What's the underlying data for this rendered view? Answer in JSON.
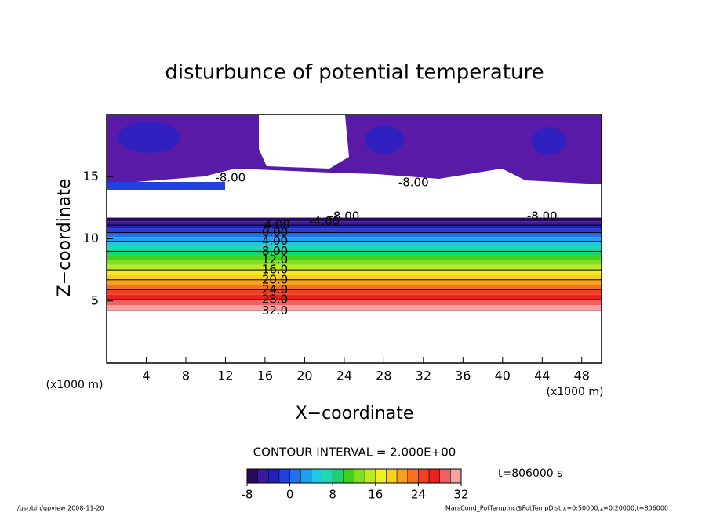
{
  "chart_data": {
    "type": "contour",
    "title": "disturbunce of potential temperature",
    "x_label": "X−coordinate",
    "y_label": "Z−coordinate",
    "x_unit": "(x1000 m)",
    "y_unit": "(x1000 m)",
    "xlim": [
      0,
      50
    ],
    "ylim": [
      0,
      20
    ],
    "xticks": [
      4,
      8,
      12,
      16,
      20,
      24,
      28,
      32,
      36,
      40,
      44,
      48
    ],
    "yticks": [
      5,
      10,
      15
    ],
    "profile": [
      {
        "value": -4,
        "label": "-4.00",
        "x": 17,
        "z": 11.1
      },
      {
        "value": 0,
        "label": "0.00",
        "x": 17,
        "z": 10.5
      },
      {
        "value": 4,
        "label": "4.00",
        "x": 17,
        "z": 9.8
      },
      {
        "value": 8,
        "label": "8.00",
        "x": 17,
        "z": 9.0
      },
      {
        "value": 12,
        "label": "12.0",
        "x": 17,
        "z": 8.3
      },
      {
        "value": 16,
        "label": "16.0",
        "x": 17,
        "z": 7.5
      },
      {
        "value": 20,
        "label": "20.0",
        "x": 17,
        "z": 6.7
      },
      {
        "value": 24,
        "label": "24.0",
        "x": 17,
        "z": 5.9
      },
      {
        "value": 28,
        "label": "28.0",
        "x": 17,
        "z": 5.1
      },
      {
        "value": 32,
        "label": "32.0",
        "x": 17,
        "z": 4.2
      }
    ],
    "annotations": [
      {
        "value": -8,
        "label": "-8.00",
        "x": 12.5,
        "z": 14.9
      },
      {
        "value": -8,
        "label": "-8.00",
        "x": 31,
        "z": 14.5
      },
      {
        "value": -4,
        "label": "-4.00",
        "x": 22,
        "z": 11.4
      },
      {
        "value": -8,
        "label": "-8.00",
        "x": 24,
        "z": 11.8
      },
      {
        "value": -8,
        "label": "-8.00",
        "x": 44,
        "z": 11.8
      }
    ],
    "contour_interval": "CONTOUR INTERVAL = 2.000E+00",
    "time_label": "t=806000 s",
    "colorbar": {
      "ticks": [
        -8,
        0,
        8,
        16,
        24,
        32
      ],
      "colors": [
        "#2a0a5e",
        "#3a1a9a",
        "#2020c0",
        "#2040e0",
        "#2070f0",
        "#20a0f0",
        "#20c8e8",
        "#20d8b0",
        "#20d070",
        "#40d020",
        "#80e020",
        "#c0e820",
        "#f0f020",
        "#f8d020",
        "#f8a020",
        "#f87020",
        "#f04020",
        "#e82020",
        "#f06060",
        "#f8a0a0"
      ]
    },
    "footer_left": "/usr/bin/gpview   2008-11-20",
    "footer_right": "MarsCond_PotTemp.nc@PotTempDist,x=0:50000,z=0:20000,t=806000"
  }
}
